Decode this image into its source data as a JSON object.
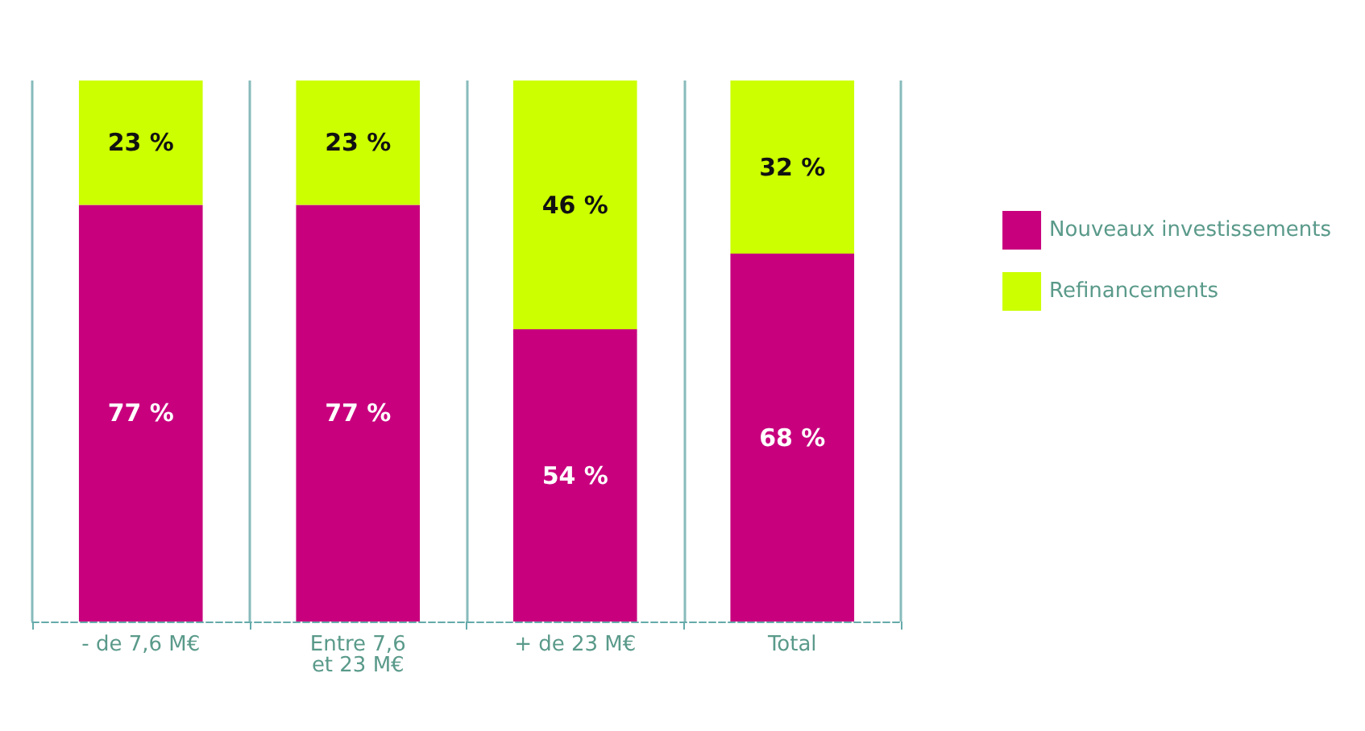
{
  "chart_data": {
    "type": "bar",
    "stacked": true,
    "categories": [
      "- de 7,6 M€",
      "Entre 7,6\net 23 M€",
      "+ de 23 M€",
      "Total"
    ],
    "series": [
      {
        "name": "Nouveaux investissements",
        "color": "#c8007e",
        "values": [
          77,
          77,
          54,
          68
        ],
        "value_labels": [
          "77 %",
          "77 %",
          "54 %",
          "68 %"
        ]
      },
      {
        "name": "Refinancements",
        "color": "#ccff00",
        "values": [
          23,
          23,
          46,
          32
        ],
        "value_labels": [
          "23 %",
          "23 %",
          "46 %",
          "32 %"
        ]
      }
    ],
    "ylim": [
      0,
      100
    ],
    "grid": "x",
    "legend": "right",
    "tick_labels": "x"
  }
}
